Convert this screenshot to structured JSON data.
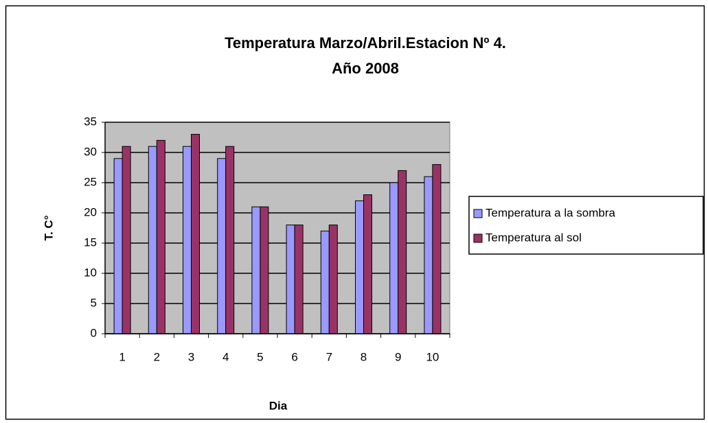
{
  "chart_data": {
    "type": "bar",
    "title": [
      "Temperatura Marzo/Abril.Estacion Nº 4.",
      "Año 2008"
    ],
    "x_label": "Dia",
    "y_label": "T. C°",
    "categories": [
      "1",
      "2",
      "3",
      "4",
      "5",
      "6",
      "7",
      "8",
      "9",
      "10"
    ],
    "series": [
      {
        "name": "Temperatura a la sombra",
        "color": "#9999ff",
        "values": [
          29,
          31,
          31,
          29,
          21,
          18,
          17,
          22,
          25,
          26
        ]
      },
      {
        "name": "Temperatura al sol",
        "color": "#993366",
        "values": [
          31,
          32,
          33,
          31,
          21,
          18,
          18,
          23,
          27,
          28
        ]
      }
    ],
    "ylim": [
      0,
      35
    ],
    "yticks": [
      0,
      5,
      10,
      15,
      20,
      25,
      30,
      35
    ],
    "grid": true,
    "plot_background": "#c0c0c0",
    "legend": "right"
  }
}
